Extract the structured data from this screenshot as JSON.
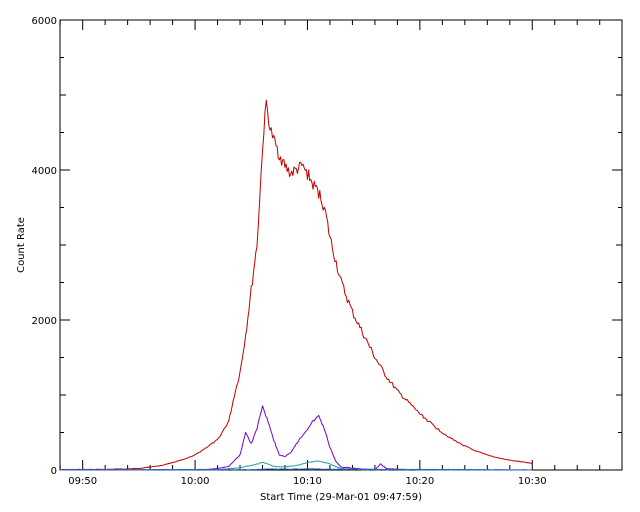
{
  "chart_data": {
    "type": "line",
    "title": "",
    "xlabel": "Start Time (29-Mar-01 09:47:59)",
    "ylabel": "Count Rate",
    "x_unit": "time (HH:MM)",
    "xlim": [
      "09:47:59",
      "10:37:59"
    ],
    "ylim": [
      0,
      6000
    ],
    "xticks": [
      "09:50",
      "10:00",
      "10:10",
      "10:20",
      "10:30"
    ],
    "yticks": [
      "0",
      "2000",
      "4000",
      "6000"
    ],
    "grid": false,
    "legend": "none",
    "series": [
      {
        "color": "#c00000",
        "points": [
          [
            "09:48",
            5
          ],
          [
            "09:52",
            8
          ],
          [
            "09:55",
            20
          ],
          [
            "09:57",
            60
          ],
          [
            "09:59",
            140
          ],
          [
            "10:00",
            200
          ],
          [
            "10:01",
            300
          ],
          [
            "10:02",
            400
          ],
          [
            "10:03",
            650
          ],
          [
            "10:03:30",
            1000
          ],
          [
            "10:04",
            1300
          ],
          [
            "10:04:30",
            1800
          ],
          [
            "10:05",
            2400
          ],
          [
            "10:05:30",
            3000
          ],
          [
            "10:05:45",
            3600
          ],
          [
            "10:06",
            4300
          ],
          [
            "10:06:20",
            4900
          ],
          [
            "10:06:40",
            4550
          ],
          [
            "10:07",
            4400
          ],
          [
            "10:07:30",
            4200
          ],
          [
            "10:08",
            4050
          ],
          [
            "10:08:30",
            3950
          ],
          [
            "10:09",
            4000
          ],
          [
            "10:09:30",
            4050
          ],
          [
            "10:10",
            3950
          ],
          [
            "10:10:30",
            3800
          ],
          [
            "10:11",
            3700
          ],
          [
            "10:11:30",
            3500
          ],
          [
            "10:12",
            3100
          ],
          [
            "10:13",
            2500
          ],
          [
            "10:14",
            2100
          ],
          [
            "10:15",
            1800
          ],
          [
            "10:16",
            1500
          ],
          [
            "10:17",
            1250
          ],
          [
            "10:18",
            1050
          ],
          [
            "10:19",
            900
          ],
          [
            "10:20",
            750
          ],
          [
            "10:21",
            620
          ],
          [
            "10:22",
            500
          ],
          [
            "10:23",
            400
          ],
          [
            "10:24",
            320
          ],
          [
            "10:25",
            250
          ],
          [
            "10:26",
            200
          ],
          [
            "10:27",
            160
          ],
          [
            "10:28",
            130
          ],
          [
            "10:29",
            110
          ],
          [
            "10:30",
            90
          ]
        ]
      },
      {
        "color": "#7a00d0",
        "points": [
          [
            "09:48",
            0
          ],
          [
            "10:01",
            5
          ],
          [
            "10:02",
            20
          ],
          [
            "10:03",
            50
          ],
          [
            "10:04",
            200
          ],
          [
            "10:04:30",
            500
          ],
          [
            "10:05",
            350
          ],
          [
            "10:05:30",
            550
          ],
          [
            "10:06",
            850
          ],
          [
            "10:06:30",
            650
          ],
          [
            "10:07",
            400
          ],
          [
            "10:07:30",
            200
          ],
          [
            "10:08",
            180
          ],
          [
            "10:08:30",
            230
          ],
          [
            "10:09",
            350
          ],
          [
            "10:09:30",
            450
          ],
          [
            "10:10",
            550
          ],
          [
            "10:10:30",
            650
          ],
          [
            "10:11",
            720
          ],
          [
            "10:11:30",
            550
          ],
          [
            "10:12",
            300
          ],
          [
            "10:12:30",
            120
          ],
          [
            "10:13",
            40
          ],
          [
            "10:15",
            10
          ],
          [
            "10:16",
            5
          ],
          [
            "10:16:30",
            80
          ],
          [
            "10:17",
            20
          ],
          [
            "10:18",
            10
          ],
          [
            "10:19",
            5
          ],
          [
            "10:30",
            0
          ]
        ]
      },
      {
        "color": "#2a9a9a",
        "points": [
          [
            "09:48",
            0
          ],
          [
            "10:02",
            5
          ],
          [
            "10:04",
            30
          ],
          [
            "10:05",
            60
          ],
          [
            "10:06",
            100
          ],
          [
            "10:06:30",
            80
          ],
          [
            "10:07",
            50
          ],
          [
            "10:08",
            40
          ],
          [
            "10:09",
            60
          ],
          [
            "10:10",
            100
          ],
          [
            "10:11",
            120
          ],
          [
            "10:12",
            80
          ],
          [
            "10:13",
            20
          ],
          [
            "10:15",
            5
          ],
          [
            "10:30",
            0
          ]
        ]
      },
      {
        "color": "#2060c0",
        "points": [
          [
            "09:48",
            0
          ],
          [
            "10:05",
            5
          ],
          [
            "10:06",
            10
          ],
          [
            "10:10",
            15
          ],
          [
            "10:12",
            10
          ],
          [
            "10:30",
            0
          ]
        ]
      }
    ]
  }
}
